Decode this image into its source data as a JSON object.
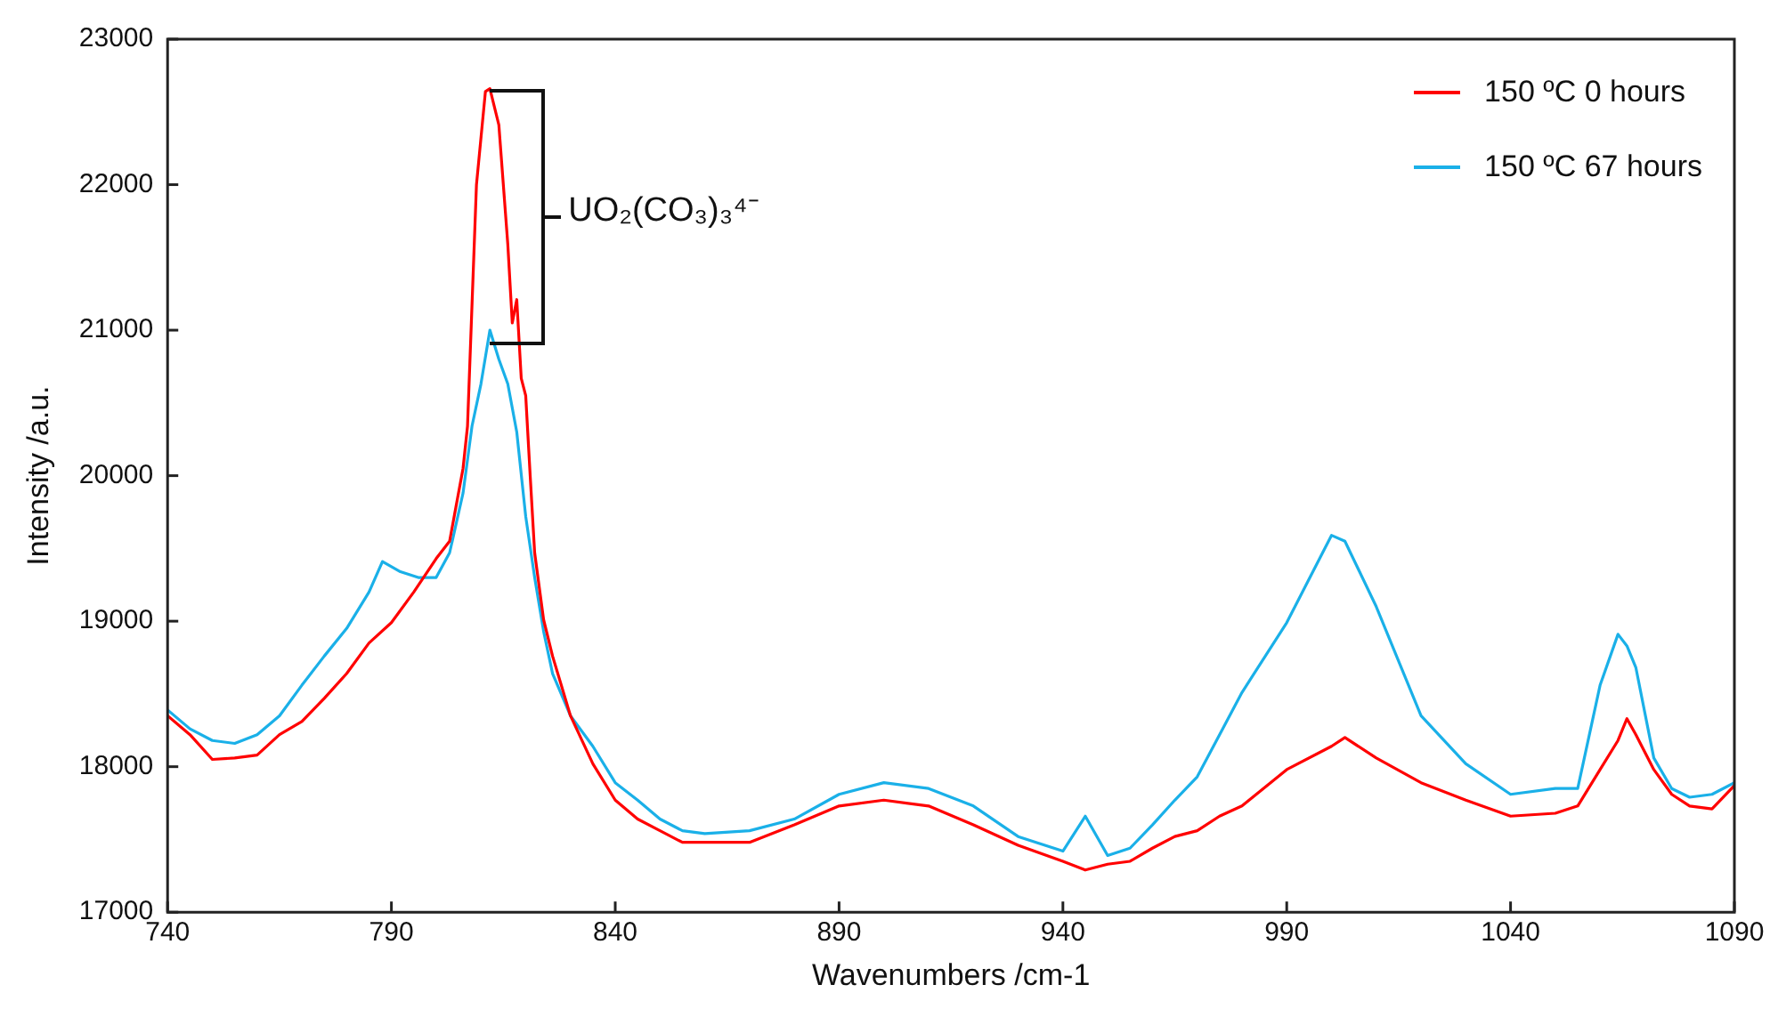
{
  "chart_data": {
    "type": "line",
    "xlabel": "Wavenumbers /cm-1",
    "ylabel": "Intensity /a.u.",
    "xlim": [
      740,
      1090
    ],
    "xticks": [
      740,
      790,
      840,
      890,
      940,
      990,
      1040,
      1090
    ],
    "ylim": [
      17000,
      23000
    ],
    "yticks": [
      17000,
      18000,
      19000,
      20000,
      21000,
      22000,
      23000
    ],
    "grid": false,
    "legend": "top right",
    "marker": "none",
    "line_style": "solid",
    "annotations": [
      "UO₂(CO₃)₃⁴⁻"
    ],
    "x": [
      740,
      745,
      750,
      755,
      760,
      765,
      770,
      775,
      780,
      785,
      790,
      795,
      800,
      803,
      806,
      807,
      809,
      811,
      812,
      814,
      816,
      817,
      818,
      819,
      820,
      821,
      822,
      824,
      826,
      830,
      835,
      840,
      845,
      850,
      855,
      860,
      870,
      880,
      890,
      900,
      910,
      920,
      930,
      940,
      945,
      950,
      955,
      960,
      965,
      970,
      975,
      980,
      990,
      1000,
      1003,
      1010,
      1020,
      1030,
      1040,
      1050,
      1055,
      1060,
      1064,
      1066,
      1068,
      1072,
      1076,
      1080,
      1085,
      1090
    ],
    "series": [
      {
        "name": "150 ºC 0 hours",
        "color": "#ff0000",
        "values": [
          18350,
          18220,
          18050,
          18060,
          18080,
          18220,
          18310,
          18470,
          18640,
          18850,
          18990,
          19200,
          19430,
          19550,
          20050,
          20340,
          22000,
          22640,
          22660,
          22410,
          21590,
          21050,
          21210,
          20670,
          20550,
          20000,
          19470,
          19010,
          18760,
          18350,
          18020,
          17770,
          17640,
          17560,
          17480,
          17480,
          17480,
          17600,
          17730,
          17770,
          17730,
          17600,
          17460,
          17350,
          17290,
          17330,
          17350,
          17440,
          17520,
          17560,
          17660,
          17730,
          17980,
          18140,
          18200,
          18060,
          17890,
          17770,
          17660,
          17680,
          17730,
          17980,
          18180,
          18330,
          18220,
          17980,
          17810,
          17730,
          17710,
          17870
        ]
      },
      {
        "name": "150 ºC 67 hours",
        "color": "#1ab0e8",
        "x": [
          740,
          745,
          750,
          755,
          760,
          765,
          770,
          775,
          780,
          785,
          788,
          792,
          796,
          800,
          803,
          806,
          808,
          810,
          812,
          814,
          816,
          818,
          820,
          822,
          824,
          826,
          830,
          835,
          840,
          845,
          850,
          855,
          860,
          870,
          880,
          890,
          900,
          910,
          920,
          930,
          940,
          945,
          950,
          955,
          960,
          965,
          970,
          975,
          980,
          990,
          1000,
          1003,
          1010,
          1020,
          1030,
          1040,
          1050,
          1055,
          1060,
          1064,
          1066,
          1068,
          1072,
          1076,
          1080,
          1085,
          1090
        ],
        "values": [
          18390,
          18260,
          18180,
          18160,
          18220,
          18350,
          18560,
          18760,
          18950,
          19200,
          19410,
          19340,
          19300,
          19300,
          19470,
          19880,
          20340,
          20630,
          21000,
          20800,
          20630,
          20300,
          19720,
          19300,
          18930,
          18640,
          18350,
          18140,
          17890,
          17770,
          17640,
          17560,
          17540,
          17560,
          17640,
          17810,
          17890,
          17850,
          17730,
          17520,
          17420,
          17660,
          17390,
          17440,
          17600,
          17770,
          17930,
          18220,
          18510,
          18990,
          19590,
          19550,
          19100,
          18350,
          18020,
          17810,
          17850,
          17850,
          18560,
          18910,
          18830,
          18680,
          18060,
          17850,
          17790,
          17810,
          17890
        ]
      }
    ]
  }
}
